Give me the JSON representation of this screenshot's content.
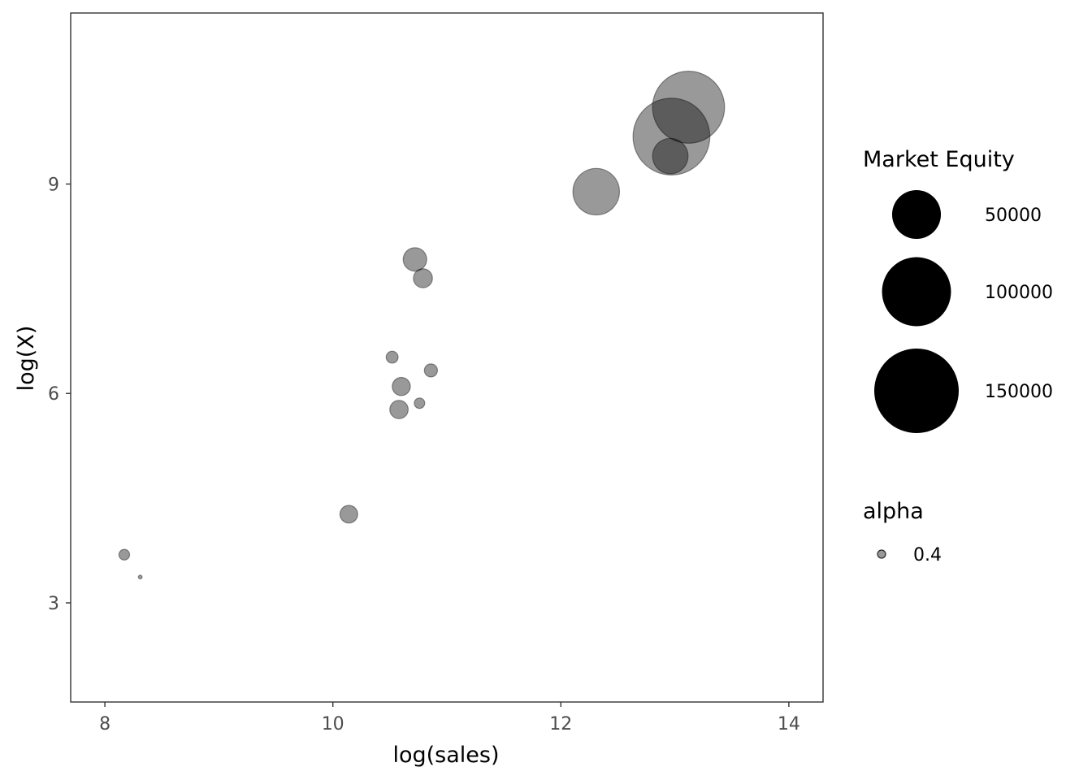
{
  "chart_data": {
    "type": "scatter",
    "title": "",
    "xlabel": "log(sales)",
    "ylabel": "log(X)",
    "xlim": [
      7.7,
      14.3
    ],
    "ylim": [
      1.58,
      11.45
    ],
    "x_ticks": [
      8,
      10,
      12,
      14
    ],
    "y_ticks": [
      3,
      6,
      9
    ],
    "grid": false,
    "point_color": "#000000",
    "point_alpha": 0.4,
    "points": [
      {
        "x": 8.17,
        "y": 3.69,
        "size": 2400
      },
      {
        "x": 8.31,
        "y": 3.37,
        "size": 300
      },
      {
        "x": 10.14,
        "y": 4.27,
        "size": 6600
      },
      {
        "x": 10.52,
        "y": 6.52,
        "size": 3000
      },
      {
        "x": 10.58,
        "y": 5.77,
        "size": 7100
      },
      {
        "x": 10.6,
        "y": 6.1,
        "size": 6900
      },
      {
        "x": 10.72,
        "y": 7.92,
        "size": 11600
      },
      {
        "x": 10.76,
        "y": 5.86,
        "size": 2300
      },
      {
        "x": 10.79,
        "y": 7.65,
        "size": 7600
      },
      {
        "x": 10.86,
        "y": 6.33,
        "size": 3600
      },
      {
        "x": 12.31,
        "y": 8.89,
        "size": 45500
      },
      {
        "x": 12.96,
        "y": 9.4,
        "size": 26400
      },
      {
        "x": 12.97,
        "y": 9.68,
        "size": 124000
      },
      {
        "x": 13.12,
        "y": 10.1,
        "size": 109000
      }
    ],
    "legends": {
      "size": {
        "title": "Market Equity",
        "breaks": [
          50000,
          100000,
          150000
        ],
        "labels": [
          "50000",
          "100000",
          "150000"
        ]
      },
      "alpha": {
        "title": "alpha",
        "labels": [
          "0.4"
        ]
      },
      "placement": "right"
    }
  }
}
